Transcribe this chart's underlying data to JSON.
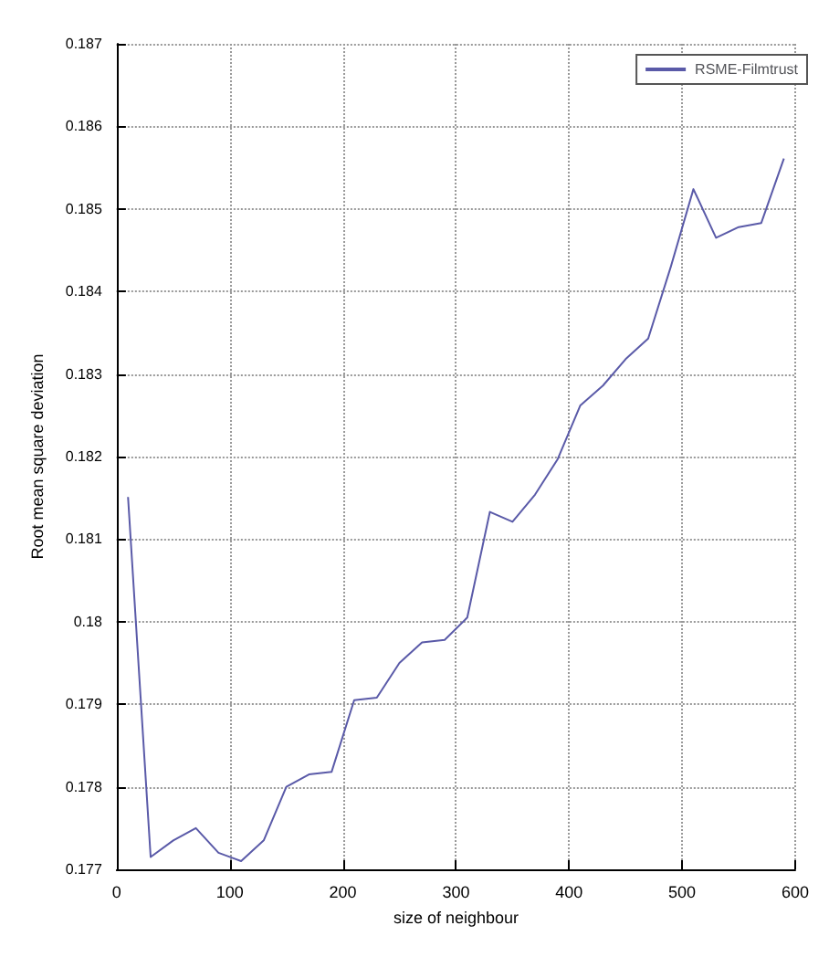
{
  "chart_data": {
    "type": "line",
    "xlabel": "size of neighbour",
    "ylabel": "Root mean square deviation",
    "x": [
      10,
      30,
      50,
      70,
      90,
      110,
      130,
      150,
      170,
      190,
      210,
      230,
      250,
      270,
      290,
      310,
      330,
      350,
      370,
      390,
      410,
      430,
      450,
      470,
      490,
      510,
      530,
      550,
      570,
      590
    ],
    "series": [
      {
        "name": "RSME-Filmtrust",
        "color": "#5a5aa8",
        "values": [
          0.18151,
          0.17715,
          0.17735,
          0.1775,
          0.1772,
          0.1771,
          0.17735,
          0.178,
          0.17815,
          0.17818,
          0.17905,
          0.17908,
          0.1795,
          0.17975,
          0.17978,
          0.18005,
          0.18133,
          0.18121,
          0.18154,
          0.18197,
          0.18262,
          0.18286,
          0.18318,
          0.18343,
          0.1843,
          0.18524,
          0.18465,
          0.18478,
          0.18483,
          0.18561
        ]
      }
    ],
    "xlim": [
      0,
      600
    ],
    "xticks": [
      0,
      100,
      200,
      300,
      400,
      500,
      600
    ],
    "ylim": [
      0.177,
      0.187
    ],
    "yticks": [
      0.177,
      0.178,
      0.179,
      0.18,
      0.181,
      0.182,
      0.183,
      0.184,
      0.185,
      0.186,
      0.187
    ],
    "grid": true,
    "legend": "top right",
    "marker": "none",
    "line_style": "solid"
  }
}
